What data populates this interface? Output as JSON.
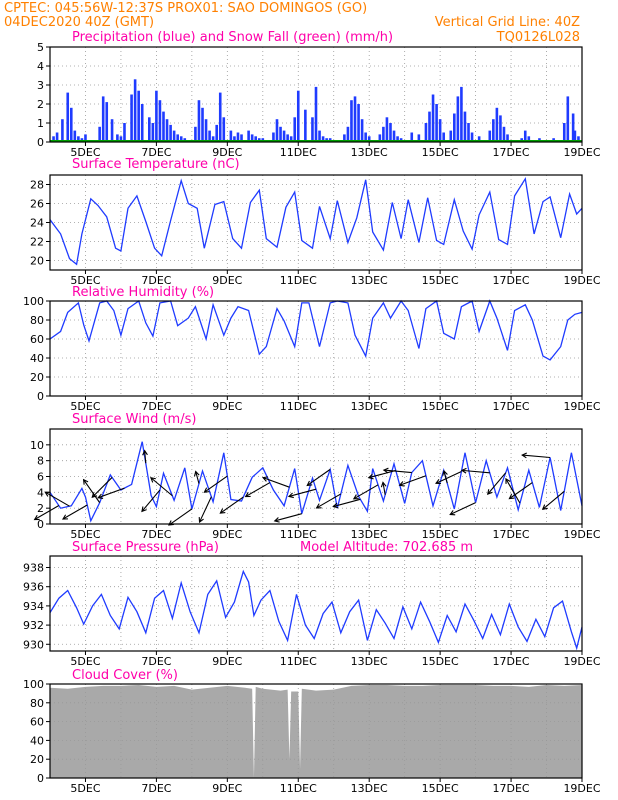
{
  "header": {
    "line1": "CPTEC:   045:56W-12:37S   PROX01: SAO DOMINGOS (GO)",
    "line2_left": "04DEC2020 40Z (GMT)",
    "line2_right": "Vertical Grid Line: 40Z",
    "code": "TQ0126L028"
  },
  "colors": {
    "header": "#ff8000",
    "title": "#ff00aa",
    "precip": "#1f3bff",
    "snow": "#00a000",
    "line": "#1f3bff",
    "cloud": "#a9a9a9",
    "axis": "#000000",
    "grid": "#999999"
  },
  "x_axis": {
    "range_days": [
      4.0,
      19.0
    ],
    "ticks": [
      {
        "day": 5,
        "label": "5DEC"
      },
      {
        "day": 7,
        "label": "7DEC"
      },
      {
        "day": 9,
        "label": "9DEC"
      },
      {
        "day": 11,
        "label": "11DEC"
      },
      {
        "day": 13,
        "label": "13DEC"
      },
      {
        "day": 15,
        "label": "15DEC"
      },
      {
        "day": 17,
        "label": "17DEC"
      },
      {
        "day": 19,
        "label": "19DEC"
      }
    ]
  },
  "chart_data": [
    {
      "type": "bar",
      "title": "Precipitation (blue) and Snow Fall (green) (mm/h)",
      "ylim": [
        0,
        5
      ],
      "yticks": [
        0,
        1,
        2,
        3,
        4,
        5
      ],
      "series": [
        {
          "name": "Precipitation",
          "x": [
            4.1,
            4.2,
            4.35,
            4.5,
            4.6,
            4.7,
            4.8,
            4.9,
            5.0,
            5.4,
            5.5,
            5.6,
            5.75,
            5.9,
            6.0,
            6.1,
            6.3,
            6.4,
            6.5,
            6.6,
            6.8,
            6.9,
            7.0,
            7.1,
            7.2,
            7.3,
            7.4,
            7.5,
            7.6,
            7.7,
            7.8,
            8.1,
            8.2,
            8.3,
            8.4,
            8.5,
            8.6,
            8.7,
            8.8,
            8.9,
            9.1,
            9.2,
            9.3,
            9.4,
            9.6,
            9.7,
            9.8,
            9.9,
            10.0,
            10.3,
            10.4,
            10.5,
            10.6,
            10.7,
            10.8,
            10.9,
            11.0,
            11.2,
            11.4,
            11.5,
            11.6,
            11.7,
            11.8,
            11.9,
            12.3,
            12.4,
            12.5,
            12.6,
            12.7,
            12.8,
            12.9,
            13.0,
            13.3,
            13.4,
            13.5,
            13.6,
            13.7,
            13.8,
            13.9,
            14.2,
            14.4,
            14.6,
            14.7,
            14.8,
            14.9,
            15.0,
            15.1,
            15.3,
            15.4,
            15.5,
            15.6,
            15.7,
            15.8,
            15.9,
            16.1,
            16.4,
            16.5,
            16.6,
            16.7,
            16.8,
            16.9,
            17.3,
            17.4,
            17.5,
            17.8,
            18.2,
            18.5,
            18.6,
            18.75,
            18.8,
            18.9
          ],
          "values": [
            0.3,
            0.5,
            1.2,
            2.6,
            1.8,
            0.6,
            0.3,
            0.2,
            0.4,
            0.8,
            2.4,
            2.1,
            1.2,
            0.4,
            0.3,
            1.0,
            2.5,
            3.3,
            2.7,
            2.0,
            1.3,
            1.0,
            2.7,
            2.2,
            1.6,
            1.2,
            0.9,
            0.6,
            0.4,
            0.3,
            0.2,
            0.8,
            2.2,
            1.8,
            1.2,
            0.6,
            0.3,
            0.9,
            2.6,
            1.3,
            0.6,
            0.3,
            0.5,
            0.4,
            0.6,
            0.4,
            0.3,
            0.2,
            0.2,
            0.5,
            1.2,
            0.8,
            0.6,
            0.4,
            0.3,
            1.3,
            2.7,
            1.7,
            1.3,
            2.9,
            0.6,
            0.3,
            0.2,
            0.2,
            0.4,
            0.8,
            2.2,
            2.4,
            2.0,
            1.2,
            0.5,
            0.3,
            0.4,
            0.8,
            1.3,
            1.0,
            0.6,
            0.3,
            0.2,
            0.5,
            0.4,
            1.0,
            1.6,
            2.5,
            2.0,
            1.2,
            0.5,
            0.6,
            1.5,
            2.4,
            2.9,
            1.6,
            1.0,
            0.5,
            0.3,
            0.6,
            1.2,
            1.8,
            1.4,
            0.8,
            0.4,
            0.2,
            0.6,
            0.3,
            0.2,
            0.2,
            1.0,
            2.4,
            1.5,
            0.6,
            0.3
          ]
        },
        {
          "name": "Snow Fall",
          "x": [
            4.0,
            19.0
          ],
          "values": [
            0.0,
            0.0
          ]
        }
      ]
    },
    {
      "type": "line",
      "title": "Surface Temperature (nC)",
      "ylim": [
        19,
        29
      ],
      "yticks": [
        20,
        22,
        24,
        26,
        28
      ],
      "x": [
        4.0,
        4.3,
        4.55,
        4.75,
        4.9,
        5.15,
        5.35,
        5.6,
        5.85,
        6.0,
        6.2,
        6.45,
        6.7,
        6.95,
        7.15,
        7.4,
        7.7,
        7.9,
        8.15,
        8.35,
        8.65,
        8.9,
        9.15,
        9.4,
        9.65,
        9.9,
        10.1,
        10.4,
        10.65,
        10.9,
        11.1,
        11.4,
        11.6,
        11.9,
        12.1,
        12.4,
        12.65,
        12.9,
        13.1,
        13.4,
        13.65,
        13.9,
        14.1,
        14.4,
        14.65,
        14.9,
        15.1,
        15.4,
        15.65,
        15.9,
        16.1,
        16.4,
        16.65,
        16.9,
        17.1,
        17.4,
        17.65,
        17.9,
        18.1,
        18.4,
        18.65,
        18.85,
        19.0
      ],
      "y": [
        24.3,
        22.8,
        20.2,
        19.6,
        22.8,
        26.5,
        25.8,
        24.6,
        21.3,
        21.0,
        25.5,
        26.8,
        24.1,
        21.3,
        20.5,
        24.2,
        28.4,
        26.0,
        25.5,
        21.3,
        25.9,
        26.2,
        22.3,
        21.3,
        26.1,
        27.4,
        22.3,
        21.4,
        25.6,
        27.2,
        22.1,
        21.3,
        25.7,
        22.3,
        26.3,
        21.9,
        24.5,
        28.5,
        23.0,
        21.1,
        26.1,
        22.3,
        26.4,
        21.9,
        26.6,
        22.1,
        21.7,
        26.4,
        23.1,
        21.2,
        24.8,
        27.2,
        22.2,
        21.7,
        26.8,
        28.6,
        22.8,
        26.2,
        26.7,
        22.4,
        27.0,
        24.9,
        25.5
      ]
    },
    {
      "type": "line",
      "title": "Relative Humidity (%)",
      "ylim": [
        0,
        100
      ],
      "yticks": [
        0,
        20,
        40,
        60,
        80,
        100
      ],
      "x": [
        4.0,
        4.3,
        4.5,
        4.8,
        4.95,
        5.1,
        5.4,
        5.6,
        5.8,
        6.0,
        6.2,
        6.5,
        6.7,
        6.9,
        7.1,
        7.4,
        7.6,
        7.9,
        8.1,
        8.4,
        8.6,
        8.9,
        9.1,
        9.3,
        9.6,
        9.9,
        10.1,
        10.4,
        10.6,
        10.9,
        11.1,
        11.3,
        11.6,
        11.9,
        12.1,
        12.4,
        12.6,
        12.9,
        13.1,
        13.4,
        13.6,
        13.9,
        14.1,
        14.4,
        14.6,
        14.9,
        15.1,
        15.4,
        15.6,
        15.9,
        16.1,
        16.4,
        16.6,
        16.9,
        17.1,
        17.4,
        17.6,
        17.9,
        18.1,
        18.4,
        18.6,
        18.8,
        19.0
      ],
      "y": [
        60,
        68,
        88,
        98,
        75,
        58,
        98,
        100,
        90,
        64,
        92,
        100,
        77,
        63,
        98,
        100,
        74,
        82,
        94,
        60,
        96,
        64,
        82,
        94,
        90,
        44,
        52,
        92,
        79,
        52,
        98,
        98,
        52,
        98,
        100,
        98,
        64,
        42,
        82,
        98,
        82,
        100,
        90,
        50,
        92,
        100,
        66,
        60,
        94,
        100,
        68,
        100,
        82,
        48,
        90,
        96,
        80,
        42,
        38,
        52,
        80,
        86,
        88
      ]
    },
    {
      "type": "line",
      "title": "Surface Wind (m/s)",
      "ylim": [
        0,
        12
      ],
      "yticks": [
        0,
        2,
        4,
        6,
        8,
        10
      ],
      "x": [
        4.0,
        4.3,
        4.6,
        4.9,
        5.0,
        5.15,
        5.4,
        5.7,
        6.0,
        6.3,
        6.6,
        6.85,
        7.0,
        7.2,
        7.5,
        7.8,
        8.0,
        8.3,
        8.6,
        8.9,
        9.1,
        9.4,
        9.7,
        10.0,
        10.3,
        10.6,
        10.9,
        11.1,
        11.4,
        11.6,
        11.9,
        12.1,
        12.4,
        12.7,
        12.95,
        13.1,
        13.4,
        13.7,
        14.0,
        14.2,
        14.5,
        14.8,
        15.1,
        15.4,
        15.7,
        16.0,
        16.3,
        16.6,
        16.9,
        17.2,
        17.5,
        17.8,
        18.1,
        18.4,
        18.7,
        19.0
      ],
      "y": [
        4.0,
        2.0,
        2.3,
        4.5,
        3.4,
        0.4,
        2.7,
        6.2,
        4.3,
        5.0,
        10.4,
        3.6,
        2.2,
        6.4,
        3.0,
        7.1,
        1.9,
        6.7,
        2.8,
        9.0,
        3.1,
        2.9,
        5.9,
        7.1,
        4.3,
        2.3,
        7.0,
        1.3,
        5.8,
        3.0,
        6.9,
        2.0,
        7.4,
        3.5,
        1.6,
        7.0,
        2.9,
        7.6,
        2.6,
        6.5,
        8.0,
        2.3,
        6.8,
        1.9,
        9.0,
        2.7,
        8.0,
        3.4,
        7.1,
        1.8,
        6.8,
        2.1,
        8.4,
        1.7,
        9.0,
        2.3
      ]
    },
    {
      "type": "line",
      "title": "Surface Pressure (hPa)",
      "annotation": "Model Altitude: 702.685  m",
      "ylim": [
        929.3,
        939.2
      ],
      "yticks": [
        930,
        932,
        934,
        936,
        938
      ],
      "x": [
        4.0,
        4.25,
        4.5,
        4.75,
        4.95,
        5.2,
        5.45,
        5.7,
        5.95,
        6.2,
        6.45,
        6.7,
        6.95,
        7.2,
        7.45,
        7.7,
        7.95,
        8.2,
        8.45,
        8.7,
        8.95,
        9.2,
        9.45,
        9.6,
        9.75,
        9.95,
        10.2,
        10.45,
        10.7,
        10.95,
        11.2,
        11.45,
        11.7,
        11.95,
        12.2,
        12.45,
        12.7,
        12.95,
        13.2,
        13.45,
        13.7,
        13.95,
        14.2,
        14.45,
        14.7,
        14.95,
        15.2,
        15.45,
        15.7,
        15.95,
        16.2,
        16.45,
        16.7,
        16.95,
        17.2,
        17.45,
        17.7,
        17.95,
        18.2,
        18.45,
        18.7,
        18.85,
        19.0
      ],
      "y": [
        933.3,
        934.8,
        935.6,
        933.8,
        932.1,
        934.0,
        935.2,
        933.0,
        931.6,
        934.9,
        933.4,
        931.2,
        934.8,
        935.6,
        932.7,
        936.4,
        933.4,
        931.2,
        935.2,
        936.6,
        932.8,
        934.4,
        937.6,
        936.5,
        933.0,
        934.6,
        935.6,
        932.4,
        930.4,
        935.2,
        932.0,
        930.6,
        933.2,
        934.4,
        931.2,
        933.4,
        934.6,
        930.4,
        933.6,
        932.2,
        930.6,
        933.9,
        931.6,
        934.4,
        932.4,
        930.2,
        933.0,
        931.3,
        934.2,
        932.5,
        930.6,
        933.1,
        931.0,
        934.2,
        931.8,
        930.3,
        932.6,
        930.8,
        933.8,
        934.5,
        931.3,
        929.6,
        931.8
      ]
    },
    {
      "type": "area",
      "title": "Cloud Cover (%)",
      "ylim": [
        0,
        100
      ],
      "yticks": [
        0,
        20,
        40,
        60,
        80,
        100
      ],
      "x": [
        4.0,
        4.5,
        5.0,
        5.5,
        6.0,
        6.5,
        7.0,
        7.5,
        8.0,
        8.5,
        9.0,
        9.5,
        9.7,
        9.75,
        9.8,
        10.0,
        10.5,
        10.7,
        10.75,
        10.8,
        11.0,
        11.05,
        11.1,
        11.5,
        12.0,
        12.5,
        13.0,
        13.5,
        14.0,
        14.5,
        15.0,
        15.5,
        16.0,
        16.5,
        17.0,
        17.5,
        18.0,
        18.5,
        19.0
      ],
      "y": [
        96,
        95,
        97,
        98,
        98,
        99,
        97,
        98,
        94,
        96,
        98,
        96,
        95,
        0,
        97,
        95,
        93,
        94,
        20,
        92,
        92,
        10,
        95,
        93,
        94,
        98,
        99,
        99,
        98,
        98,
        99,
        99,
        99,
        98,
        98,
        97,
        99,
        98,
        99
      ]
    }
  ],
  "wind_arrows": [
    {
      "day": 4.25,
      "dir": 210
    },
    {
      "day": 4.55,
      "dir": 150
    },
    {
      "day": 5.05,
      "dir": 210
    },
    {
      "day": 5.4,
      "dir": 125
    },
    {
      "day": 5.75,
      "dir": 225
    },
    {
      "day": 6.1,
      "dir": 200
    },
    {
      "day": 6.7,
      "dir": 95
    },
    {
      "day": 7.1,
      "dir": 230
    },
    {
      "day": 7.45,
      "dir": 140
    },
    {
      "day": 8.0,
      "dir": 215
    },
    {
      "day": 8.2,
      "dir": 105
    },
    {
      "day": 8.55,
      "dir": 245
    },
    {
      "day": 9.0,
      "dir": 215
    },
    {
      "day": 9.45,
      "dir": 215
    },
    {
      "day": 10.2,
      "dir": 210
    },
    {
      "day": 10.75,
      "dir": 160
    },
    {
      "day": 11.1,
      "dir": 195
    },
    {
      "day": 11.5,
      "dir": 195
    },
    {
      "day": 11.9,
      "dir": 215
    },
    {
      "day": 12.2,
      "dir": 210
    },
    {
      "day": 12.75,
      "dir": 195
    },
    {
      "day": 13.25,
      "dir": 210
    },
    {
      "day": 13.45,
      "dir": 100
    },
    {
      "day": 13.75,
      "dir": 195
    },
    {
      "day": 14.2,
      "dir": 175
    },
    {
      "day": 14.6,
      "dir": 200
    },
    {
      "day": 15.2,
      "dir": 105
    },
    {
      "day": 15.6,
      "dir": 205
    },
    {
      "day": 16.0,
      "dir": 205
    },
    {
      "day": 16.4,
      "dir": 175
    },
    {
      "day": 16.85,
      "dir": 230
    },
    {
      "day": 17.25,
      "dir": 120
    },
    {
      "day": 17.6,
      "dir": 215
    },
    {
      "day": 18.1,
      "dir": 175
    },
    {
      "day": 18.5,
      "dir": 220
    }
  ]
}
